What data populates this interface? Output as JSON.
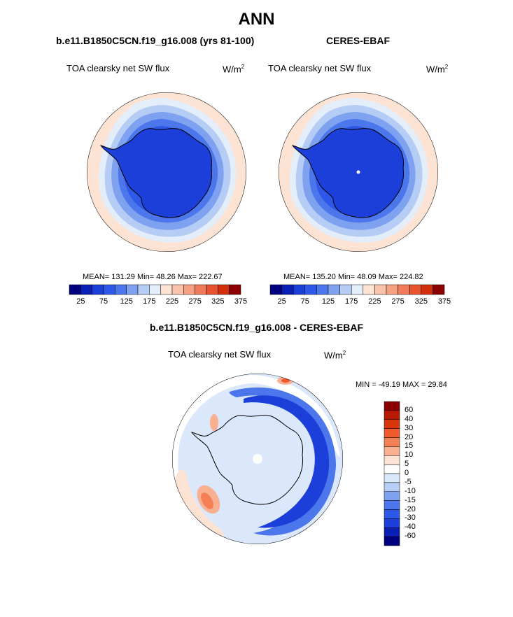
{
  "title": "ANN",
  "panels": [
    {
      "case": "b.e11.B1850C5CN.f19_g16.008 (yrs 81-100)",
      "variable": "TOA clearsky net SW flux",
      "units": "W/m",
      "units_exp": "2",
      "stats": "MEAN= 131.29  Min=  48.26  Max= 222.67"
    },
    {
      "case": "CERES-EBAF",
      "variable": "TOA clearsky net SW flux",
      "units": "W/m",
      "units_exp": "2",
      "stats": "MEAN= 135.20  Min=  48.09  Max= 224.82"
    },
    {
      "case": "b.e11.B1850C5CN.f19_g16.008 - CERES-EBAF",
      "variable": "TOA clearsky net SW flux",
      "units": "W/m",
      "units_exp": "2",
      "stats": "MIN = -49.19 MAX =  29.84"
    }
  ],
  "colorbar_abs": {
    "colors": [
      "#000080",
      "#0a1fb5",
      "#1d3fd9",
      "#2e58e8",
      "#4b76ec",
      "#7fa2f0",
      "#b5cdf5",
      "#e3eefa",
      "#fde3d4",
      "#f9c3ab",
      "#f5a081",
      "#f07a59",
      "#e9522f",
      "#d22f0c",
      "#8b0000"
    ],
    "labels": [
      "25",
      "75",
      "125",
      "175",
      "225",
      "275",
      "325",
      "375"
    ]
  },
  "colorbar_diff": {
    "colors_top_to_bottom": [
      "#8b0000",
      "#b81a04",
      "#d8350d",
      "#f05a2e",
      "#f58056",
      "#f9b091",
      "#fde3d4",
      "#ffffff",
      "#dbe7fa",
      "#b6cdf5",
      "#7fa2f0",
      "#4b76ec",
      "#2e58e8",
      "#1d3fd9",
      "#0a1fb5",
      "#000080"
    ],
    "labels_top_to_bottom": [
      "60",
      "40",
      "30",
      "20",
      "15",
      "10",
      "5",
      "0",
      "-5",
      "-10",
      "-15",
      "-20",
      "-30",
      "-40",
      "-60"
    ]
  }
}
